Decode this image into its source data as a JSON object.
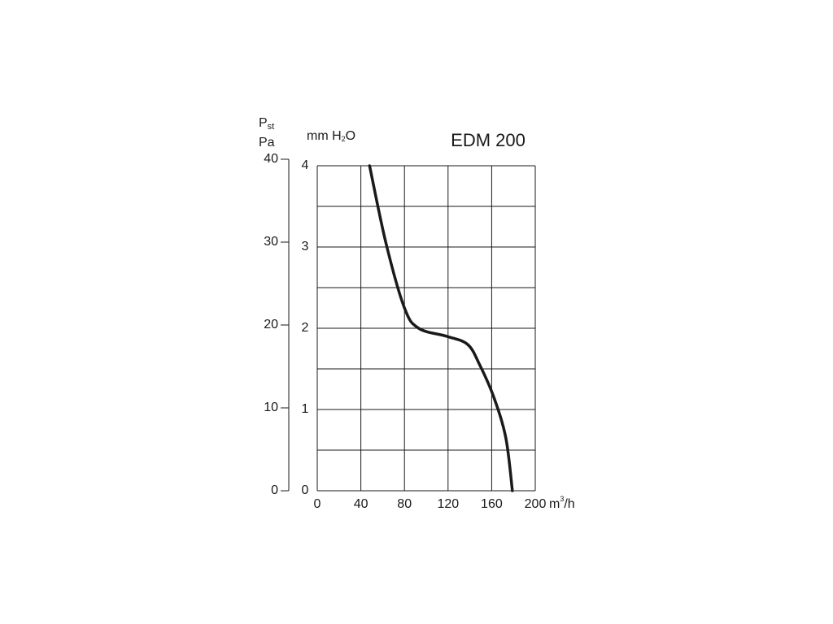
{
  "chart_data": {
    "type": "line",
    "title": "EDM 200",
    "y_label_symbol": "P",
    "y_label_subscript": "st",
    "y2_label": "Pa",
    "y_label_parts": [
      "mm H",
      "2",
      "O"
    ],
    "x_label_parts": [
      "m",
      "3",
      "/h"
    ],
    "x": [
      48,
      63,
      80,
      93,
      119,
      138,
      149,
      162,
      173,
      179
    ],
    "values": [
      4,
      3.05,
      2.25,
      2.0,
      1.9,
      1.8,
      1.55,
      1.15,
      0.65,
      0
    ],
    "color": "#1a1a1a",
    "xlim": [
      0,
      200
    ],
    "xticks": [
      0,
      40,
      80,
      120,
      160,
      200
    ],
    "ylim": [
      0,
      4
    ],
    "yticks": [
      0,
      1,
      2,
      3,
      4
    ],
    "y_minor_ticks": [
      0.5,
      1.5,
      2.5,
      3.5
    ],
    "y2lim": [
      0,
      40
    ],
    "y2ticks": [
      0,
      10,
      20,
      30,
      40
    ],
    "grid": true
  }
}
